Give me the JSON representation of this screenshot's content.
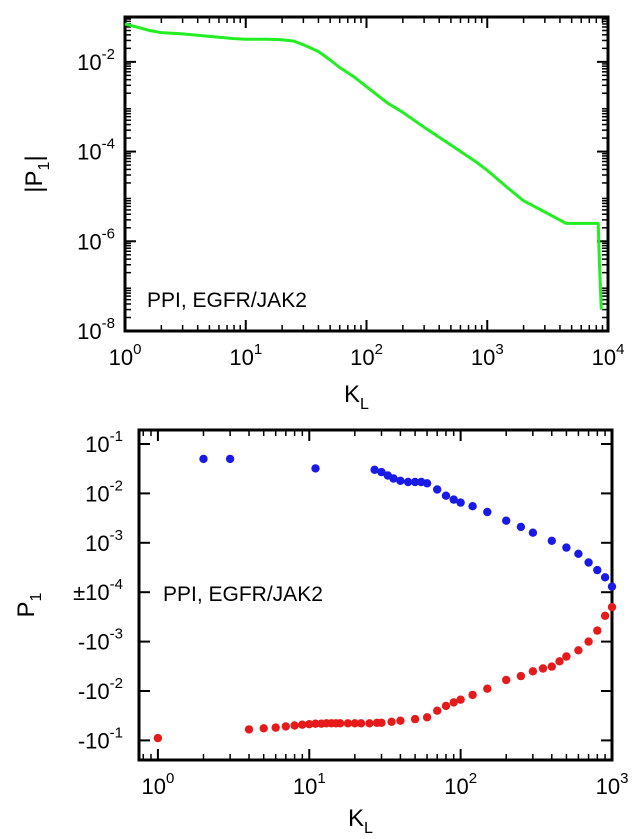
{
  "chart_data": [
    {
      "type": "line",
      "xlabel": "K",
      "xlabel_sub": "L",
      "ylabel": "|P",
      "ylabel_sub": "1",
      "ylabel_end": "|",
      "x_scale": "log",
      "y_scale": "log",
      "xlim": [
        1,
        10000
      ],
      "ylim": [
        1e-08,
        0.1
      ],
      "x_ticks": [
        {
          "value": 1,
          "base": "10",
          "exp": "0"
        },
        {
          "value": 10,
          "base": "10",
          "exp": "1"
        },
        {
          "value": 100,
          "base": "10",
          "exp": "2"
        },
        {
          "value": 1000,
          "base": "10",
          "exp": "3"
        },
        {
          "value": 10000,
          "base": "10",
          "exp": "4"
        }
      ],
      "y_ticks": [
        {
          "value": 1e-08,
          "base": "10",
          "exp": "-8"
        },
        {
          "value": 1e-06,
          "base": "10",
          "exp": "-6"
        },
        {
          "value": 0.0001,
          "base": "10",
          "exp": "-4"
        },
        {
          "value": 0.01,
          "base": "10",
          "exp": "-2"
        }
      ],
      "annotation": "PPI, EGFR/JAK2",
      "grid": false,
      "series": [
        {
          "color": "#22ee22",
          "x": [
            1,
            1.6,
            2,
            3,
            5,
            8,
            10,
            15,
            20,
            25,
            30,
            40,
            50,
            60,
            80,
            100,
            150,
            200,
            300,
            500,
            800,
            1000,
            1500,
            2000,
            3000,
            4500,
            8000,
            8300,
            8500,
            8800
          ],
          "y": [
            0.07,
            0.05,
            0.045,
            0.042,
            0.037,
            0.033,
            0.032,
            0.032,
            0.031,
            0.029,
            0.024,
            0.017,
            0.011,
            0.0075,
            0.0045,
            0.0028,
            0.0012,
            0.00075,
            0.00035,
            0.00014,
            6e-05,
            3.8e-05,
            1.5e-05,
            8e-06,
            4.5e-06,
            2.5e-06,
            2.5e-06,
            2.5e-06,
            3e-07,
            3e-08
          ]
        }
      ]
    },
    {
      "type": "scatter",
      "xlabel": "K",
      "xlabel_sub": "L",
      "ylabel": "P",
      "ylabel_sub": "1",
      "x_scale": "log",
      "y_scale": "symlog",
      "xlim": [
        0.75,
        1000
      ],
      "x_ticks": [
        {
          "value": 1,
          "base": "10",
          "exp": "0"
        },
        {
          "value": 10,
          "base": "10",
          "exp": "1"
        },
        {
          "value": 100,
          "base": "10",
          "exp": "2"
        },
        {
          "value": 1000,
          "base": "10",
          "exp": "3"
        }
      ],
      "y_ticks": [
        {
          "value": 0.1,
          "base": "10",
          "exp": "-1"
        },
        {
          "value": 0.01,
          "base": "10",
          "exp": "-2"
        },
        {
          "value": 0.001,
          "base": "10",
          "exp": "-3"
        },
        {
          "value": 0.0001,
          "base": "±10",
          "exp": "-4"
        },
        {
          "value": -0.001,
          "base": "-10",
          "exp": "-3"
        },
        {
          "value": -0.01,
          "base": "-10",
          "exp": "-2"
        },
        {
          "value": -0.1,
          "base": "-10",
          "exp": "-1"
        }
      ],
      "annotation": "PPI, EGFR/JAK2",
      "grid": false,
      "series": [
        {
          "color": "#1a1ae6",
          "x": [
            2,
            3,
            11,
            27,
            30,
            33,
            36,
            40,
            45,
            50,
            55,
            60,
            70,
            80,
            90,
            100,
            120,
            150,
            200,
            250,
            300,
            400,
            500,
            600,
            700,
            800,
            900,
            1000
          ],
          "y": [
            0.05,
            0.05,
            0.032,
            0.03,
            0.027,
            0.023,
            0.02,
            0.018,
            0.017,
            0.017,
            0.017,
            0.016,
            0.012,
            0.009,
            0.0075,
            0.0065,
            0.0055,
            0.0042,
            0.0028,
            0.0021,
            0.0016,
            0.0011,
            0.0008,
            0.0006,
            0.0004,
            0.00028,
            0.0002,
            0.00013
          ]
        },
        {
          "color": "#e61a1a",
          "x": [
            1,
            4,
            5,
            6,
            7,
            8,
            9,
            10,
            11,
            12,
            13,
            14,
            15,
            16,
            18,
            20,
            22,
            25,
            28,
            30,
            35,
            40,
            50,
            60,
            70,
            80,
            90,
            100,
            120,
            150,
            200,
            250,
            300,
            350,
            400,
            450,
            500,
            600,
            700,
            800,
            900,
            1000
          ],
          "y": [
            -0.09,
            -0.06,
            -0.057,
            -0.055,
            -0.052,
            -0.05,
            -0.048,
            -0.047,
            -0.046,
            -0.046,
            -0.045,
            -0.045,
            -0.045,
            -0.045,
            -0.045,
            -0.045,
            -0.045,
            -0.045,
            -0.044,
            -0.044,
            -0.042,
            -0.04,
            -0.037,
            -0.034,
            -0.025,
            -0.02,
            -0.017,
            -0.015,
            -0.012,
            -0.009,
            -0.006,
            -0.005,
            -0.004,
            -0.0035,
            -0.0032,
            -0.0025,
            -0.002,
            -0.0015,
            -0.001,
            -0.0006,
            -0.0003,
            -0.0002
          ]
        }
      ]
    }
  ]
}
